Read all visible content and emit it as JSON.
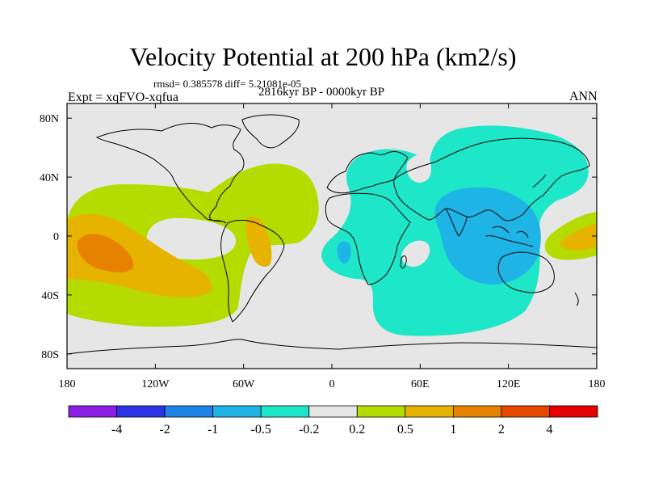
{
  "title": "Velocity Potential at 200 hPa (km2/s)",
  "stats": "rmsd= 0.385578 diff= 5.21081e-05",
  "period": "2816kyr BP - 0000kyr BP",
  "experiment": "Expt = xqFVO-xqfua",
  "season": "ANN",
  "map": {
    "projection": "cylindrical-equidistant",
    "lon_range": [
      -180,
      180
    ],
    "lat_range": [
      -90,
      90
    ],
    "x_ticks": [
      "180",
      "120W",
      "60W",
      "0",
      "60E",
      "120E",
      "180"
    ],
    "y_ticks": [
      "80N",
      "40N",
      "0",
      "40S",
      "80S"
    ],
    "background_color": "#e6e6e6"
  },
  "colorbar": {
    "labels": [
      "-4",
      "-2",
      "-1",
      "-0.5",
      "-0.2",
      "0.2",
      "0.5",
      "1",
      "2",
      "4"
    ],
    "colors": [
      "#8c1ee6",
      "#2d32e6",
      "#1e82e6",
      "#1eb4e6",
      "#1ee6c8",
      "#e6e6e6",
      "#b4dc00",
      "#e6b400",
      "#e68200",
      "#e64600",
      "#e60000"
    ]
  },
  "anomalies": [
    {
      "name": "east-pacific-positive",
      "level": "0.2 to 0.5",
      "color": "#b4dc00"
    },
    {
      "name": "central-pacific-core",
      "level": "0.5 to 1",
      "color": "#e6b400"
    },
    {
      "name": "central-pacific-peak",
      "level": "1 to 2",
      "color": "#e68200"
    },
    {
      "name": "indo-pacific-negative",
      "level": "-0.5 to -0.2",
      "color": "#1ee6c8"
    },
    {
      "name": "maritime-continent-core",
      "level": "-1 to -0.5",
      "color": "#1eb4e6"
    }
  ]
}
